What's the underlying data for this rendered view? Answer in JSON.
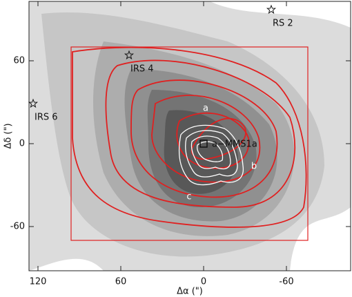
{
  "chart_data": {
    "type": "contour",
    "xlabel": "Δα (\")",
    "ylabel": "Δδ (\")",
    "xlim": [
      126.5,
      -106.5
    ],
    "ylim": [
      -92,
      103
    ],
    "xticks": [
      120,
      60,
      0,
      -60
    ],
    "yticks": [
      -60,
      0,
      60
    ],
    "box": {
      "xlim": [
        96,
        -75.5
      ],
      "ylim": [
        -70,
        70
      ],
      "color": "#e02020"
    },
    "annotations": [
      {
        "text": "RS 2",
        "x": -49,
        "y": 97,
        "marker": "star"
      },
      {
        "text": "IRS 4",
        "x": 54,
        "y": 64,
        "marker": "star"
      },
      {
        "text": "IRS 6",
        "x": 123.5,
        "y": 29,
        "marker": "star"
      },
      {
        "text": "a−MMS1a",
        "x": 0,
        "y": 0,
        "marker": "square"
      },
      {
        "text": "a",
        "x": -1.5,
        "y": 25.5
      },
      {
        "text": "b",
        "x": -36.5,
        "y": -16.5
      },
      {
        "text": "c",
        "x": 10.5,
        "y": -38.5
      }
    ]
  }
}
